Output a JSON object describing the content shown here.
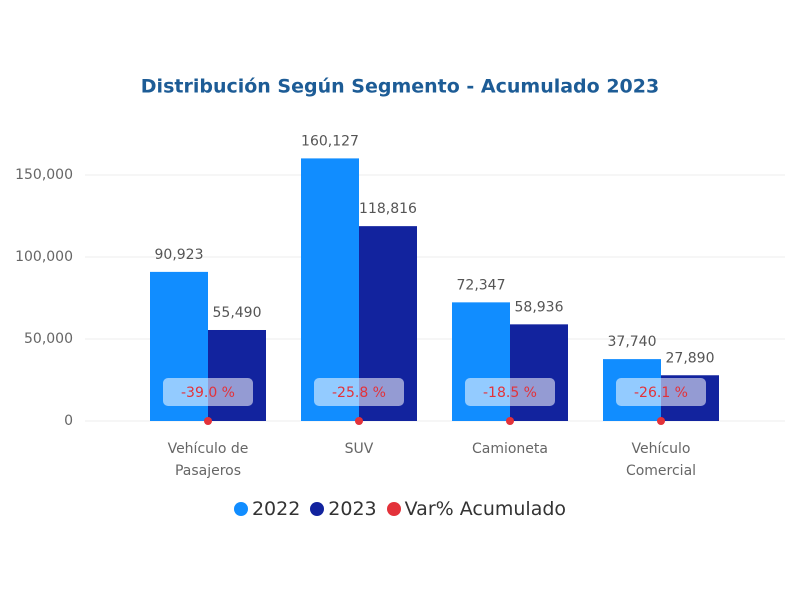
{
  "chart_data": {
    "type": "bar",
    "title": "Distribución Según Segmento - Acumulado 2023",
    "categories": [
      "Vehículo de Pasajeros",
      "SUV",
      "Camioneta",
      "Vehículo Comercial"
    ],
    "series": [
      {
        "name": "2022",
        "color": "#118dff",
        "values": [
          90923,
          160127,
          72347,
          37740
        ],
        "value_labels": [
          "90,923",
          "160,127",
          "72,347",
          "37,740"
        ]
      },
      {
        "name": "2023",
        "color": "#12239e",
        "values": [
          55490,
          118816,
          58936,
          27890
        ],
        "value_labels": [
          "55,490",
          "118,816",
          "58,936",
          "27,890"
        ]
      },
      {
        "name": "Var% Acumulado",
        "color": "#e3323a",
        "values": [
          -39.0,
          -25.8,
          -18.5,
          -26.1
        ],
        "value_labels": [
          "-39.0 %",
          "-25.8 %",
          "-18.5 %",
          "-26.1 %"
        ]
      }
    ],
    "ylim": [
      0,
      165000
    ],
    "yticks": [
      0,
      {
        "value": 50000,
        "label": "50,000"
      },
      {
        "value": 100000,
        "label": "100,000"
      },
      {
        "value": 150000,
        "label": "150,000"
      }
    ],
    "grid": true
  }
}
